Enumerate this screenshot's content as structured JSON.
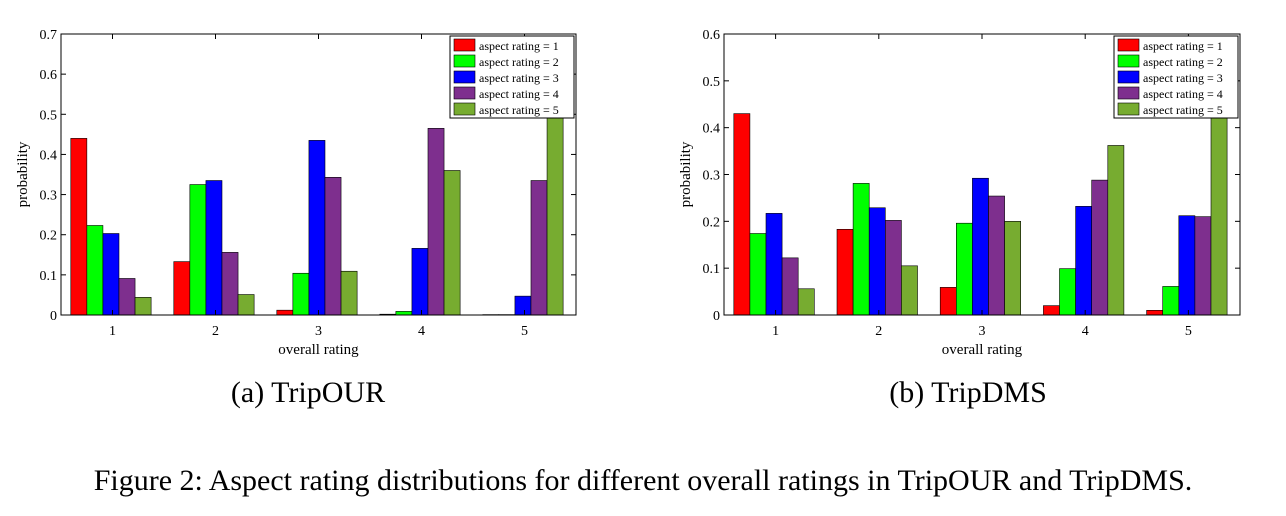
{
  "figure_caption": "Figure 2: Aspect rating distributions for different overall ratings in TripOUR and TripDMS.",
  "colors": {
    "aspect rating = 1": "#ff0000",
    "aspect rating = 2": "#00ff00",
    "aspect rating = 3": "#0000ff",
    "aspect rating = 4": "#7e2f8e",
    "aspect rating = 5": "#77ac30"
  },
  "chart_data": [
    {
      "type": "bar",
      "caption": "(a) TripOUR",
      "xlabel": "overall rating",
      "ylabel": "probability",
      "categories": [
        "1",
        "2",
        "3",
        "4",
        "5"
      ],
      "ylim": [
        0,
        0.7
      ],
      "yticks": [
        "0",
        "0.1",
        "0.2",
        "0.3",
        "0.4",
        "0.5",
        "0.6",
        "0.7"
      ],
      "legend_position": "top-right",
      "grid": false,
      "series": [
        {
          "name": "aspect rating = 1",
          "values": [
            0.44,
            0.133,
            0.012,
            0.002,
            0.001
          ]
        },
        {
          "name": "aspect rating = 2",
          "values": [
            0.223,
            0.325,
            0.104,
            0.009,
            0.001
          ]
        },
        {
          "name": "aspect rating = 3",
          "values": [
            0.203,
            0.335,
            0.435,
            0.166,
            0.047
          ]
        },
        {
          "name": "aspect rating = 4",
          "values": [
            0.091,
            0.156,
            0.343,
            0.465,
            0.335
          ]
        },
        {
          "name": "aspect rating = 5",
          "values": [
            0.044,
            0.051,
            0.109,
            0.36,
            0.617
          ]
        }
      ]
    },
    {
      "type": "bar",
      "caption": "(b) TripDMS",
      "xlabel": "overall rating",
      "ylabel": "probability",
      "categories": [
        "1",
        "2",
        "3",
        "4",
        "5"
      ],
      "ylim": [
        0,
        0.6
      ],
      "yticks": [
        "0",
        "0.1",
        "0.2",
        "0.3",
        "0.4",
        "0.5",
        "0.6"
      ],
      "legend_position": "top-right",
      "grid": false,
      "series": [
        {
          "name": "aspect rating = 1",
          "values": [
            0.43,
            0.183,
            0.059,
            0.02,
            0.01
          ]
        },
        {
          "name": "aspect rating = 2",
          "values": [
            0.174,
            0.281,
            0.196,
            0.099,
            0.061
          ]
        },
        {
          "name": "aspect rating = 3",
          "values": [
            0.217,
            0.229,
            0.292,
            0.232,
            0.212
          ]
        },
        {
          "name": "aspect rating = 4",
          "values": [
            0.122,
            0.202,
            0.254,
            0.288,
            0.21
          ]
        },
        {
          "name": "aspect rating = 5",
          "values": [
            0.056,
            0.105,
            0.2,
            0.362,
            0.505
          ]
        }
      ]
    }
  ]
}
